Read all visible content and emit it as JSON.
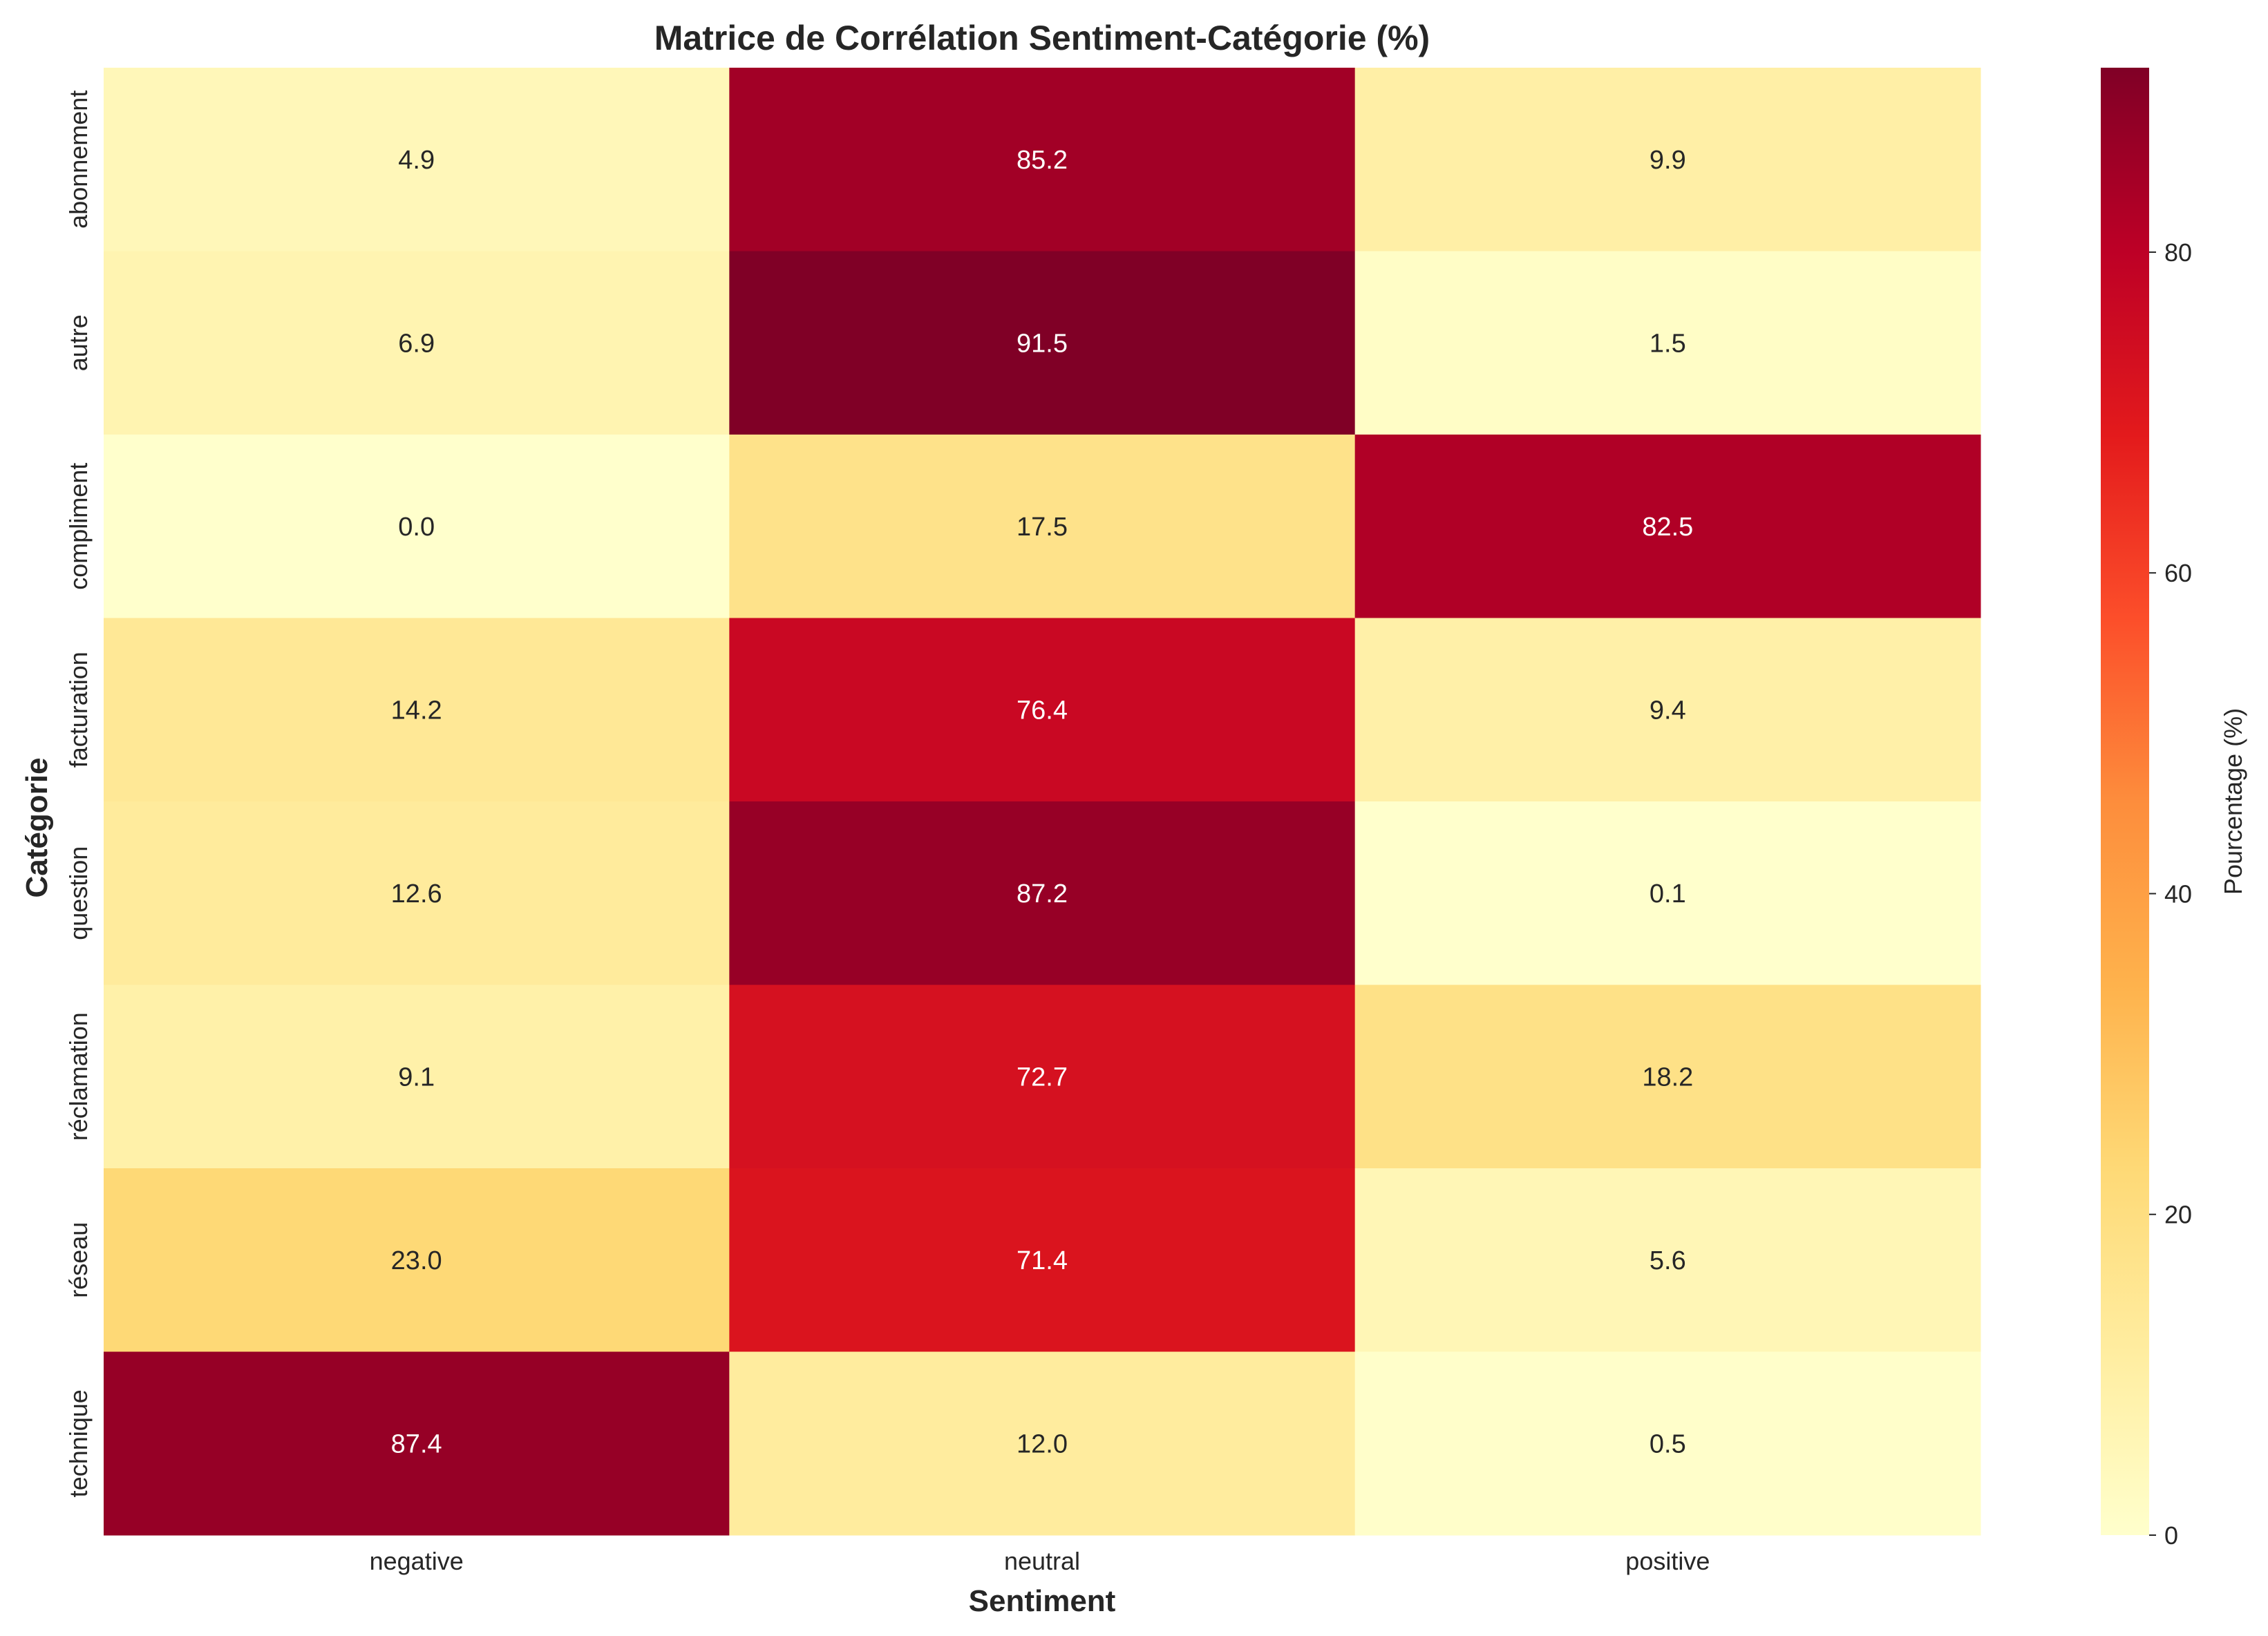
{
  "chart_data": {
    "type": "heatmap",
    "title": "Matrice de Corrélation Sentiment-Catégorie (%)",
    "xlabel": "Sentiment",
    "ylabel": "Catégorie",
    "x_categories": [
      "negative",
      "neutral",
      "positive"
    ],
    "y_categories": [
      "abonnement",
      "autre",
      "compliment",
      "facturation",
      "question",
      "réclamation",
      "réseau",
      "technique"
    ],
    "values": [
      [
        4.9,
        85.2,
        9.9
      ],
      [
        6.9,
        91.5,
        1.5
      ],
      [
        0.0,
        17.5,
        82.5
      ],
      [
        14.2,
        76.4,
        9.4
      ],
      [
        12.6,
        87.2,
        0.1
      ],
      [
        9.1,
        72.7,
        18.2
      ],
      [
        23.0,
        71.4,
        5.6
      ],
      [
        87.4,
        12.0,
        0.5
      ]
    ],
    "value_labels": [
      [
        "4.9",
        "85.2",
        "9.9"
      ],
      [
        "6.9",
        "91.5",
        "1.5"
      ],
      [
        "0.0",
        "17.5",
        "82.5"
      ],
      [
        "14.2",
        "76.4",
        "9.4"
      ],
      [
        "12.6",
        "87.2",
        "0.1"
      ],
      [
        "9.1",
        "72.7",
        "18.2"
      ],
      [
        "23.0",
        "71.4",
        "5.6"
      ],
      [
        "87.4",
        "12.0",
        "0.5"
      ]
    ],
    "colormap": "YlOrRd",
    "color_range": [
      0,
      91.5
    ],
    "colorbar": {
      "label": "Pourcentage (%)",
      "ticks": [
        0,
        20,
        40,
        60,
        80
      ],
      "tick_labels": [
        "0",
        "20",
        "40",
        "60",
        "80"
      ]
    },
    "colormap_stops": [
      "#ffffcc",
      "#ffeda0",
      "#fed976",
      "#feb24c",
      "#fd8d3c",
      "#fc4e2a",
      "#e31a1c",
      "#bd0026",
      "#800026"
    ],
    "grid": false,
    "legend": "colorbar-right"
  }
}
